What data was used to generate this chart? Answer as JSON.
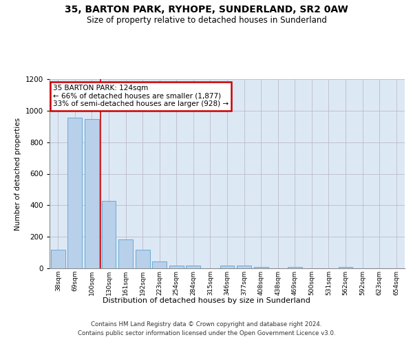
{
  "title": "35, BARTON PARK, RYHOPE, SUNDERLAND, SR2 0AW",
  "subtitle": "Size of property relative to detached houses in Sunderland",
  "xlabel": "Distribution of detached houses by size in Sunderland",
  "ylabel": "Number of detached properties",
  "categories": [
    "38sqm",
    "69sqm",
    "100sqm",
    "130sqm",
    "161sqm",
    "192sqm",
    "223sqm",
    "254sqm",
    "284sqm",
    "315sqm",
    "346sqm",
    "377sqm",
    "408sqm",
    "438sqm",
    "469sqm",
    "500sqm",
    "531sqm",
    "562sqm",
    "592sqm",
    "623sqm",
    "654sqm"
  ],
  "values": [
    120,
    955,
    948,
    428,
    183,
    120,
    43,
    18,
    18,
    0,
    18,
    18,
    10,
    0,
    10,
    0,
    0,
    10,
    0,
    0,
    0
  ],
  "bar_color": "#b8d0ea",
  "bar_edge_color": "#6aaad4",
  "ax_facecolor": "#dde8f5",
  "background_color": "#ffffff",
  "grid_color": "#bbbbcc",
  "annotation_box_text": "35 BARTON PARK: 124sqm\n← 66% of detached houses are smaller (1,877)\n33% of semi-detached houses are larger (928) →",
  "annotation_box_color": "#ffffff",
  "annotation_box_edge_color": "#cc0000",
  "vertical_line_x": 2.5,
  "vertical_line_color": "#cc0000",
  "ylim": [
    0,
    1200
  ],
  "yticks": [
    0,
    200,
    400,
    600,
    800,
    1000,
    1200
  ],
  "footer_line1": "Contains HM Land Registry data © Crown copyright and database right 2024.",
  "footer_line2": "Contains public sector information licensed under the Open Government Licence v3.0."
}
